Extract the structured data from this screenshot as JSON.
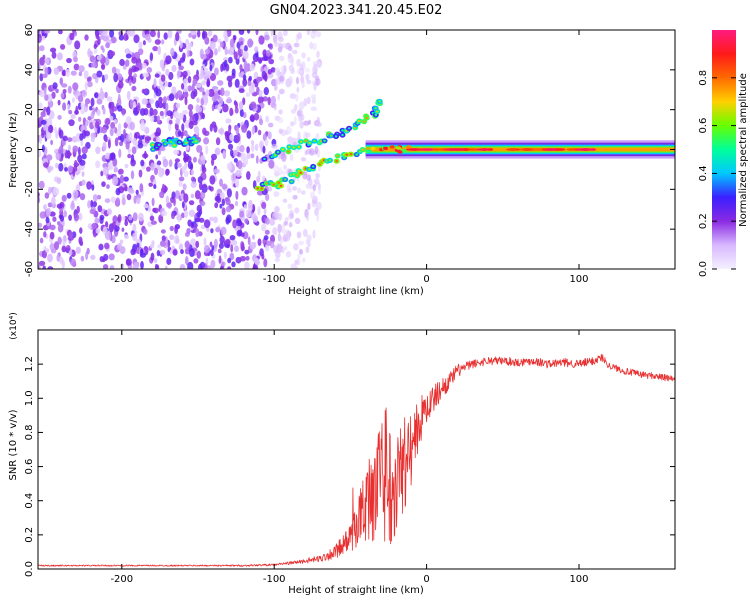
{
  "chart_data": [
    {
      "type": "heatmap",
      "title": "GN04.2023.341.20.45.E02",
      "xlabel": "Height of straight line (km)",
      "ylabel": "Frequency (Hz)",
      "xlim": [
        -255,
        163
      ],
      "ylim": [
        -60,
        60
      ],
      "xticks": [
        -200,
        -100,
        0,
        100
      ],
      "yticks": [
        -60,
        -40,
        -20,
        0,
        20,
        40,
        60
      ],
      "xtick_labels": [
        "-200",
        "-100",
        "0",
        "100"
      ],
      "ytick_labels": [
        "-60",
        "-40",
        "-20",
        "0",
        "20",
        "40",
        "60"
      ],
      "colorbar": {
        "label": "Normalized spectral amplitude",
        "range": [
          0,
          1
        ],
        "ticks": [
          0.0,
          0.2,
          0.4,
          0.6,
          0.8
        ],
        "tick_labels": [
          "0.0",
          "0.2",
          "0.4",
          "0.6",
          "0.8"
        ],
        "colors": [
          "#f4f0ff",
          "#d8b8ff",
          "#8a2be2",
          "#3b1fff",
          "#00c8ff",
          "#00ff9a",
          "#66ff00",
          "#ffd000",
          "#ff6a00",
          "#ff1a1a",
          "#ff1a80"
        ]
      },
      "features": [
        {
          "name": "noise-field",
          "x_range": [
            -255,
            -100
          ],
          "freq_range": [
            -60,
            60
          ],
          "amplitude": 0.25
        },
        {
          "name": "faint-noise",
          "x_range": [
            -100,
            -70
          ],
          "freq_range": [
            -60,
            60
          ],
          "amplitude": 0.1
        },
        {
          "name": "arc-lower",
          "points": [
            [
              -110,
              -19
            ],
            [
              -95,
              -17
            ],
            [
              -80,
              -10
            ],
            [
              -60,
              -5
            ],
            [
              -40,
              0
            ]
          ],
          "amplitude": 0.5
        },
        {
          "name": "arc-upper",
          "points": [
            [
              -105,
              -4
            ],
            [
              -85,
              2
            ],
            [
              -65,
              6
            ],
            [
              -50,
              10
            ],
            [
              -35,
              18
            ],
            [
              -30,
              26
            ]
          ],
          "amplitude": 0.45
        },
        {
          "name": "blob-left",
          "points": [
            [
              -180,
              1
            ],
            [
              -170,
              4
            ],
            [
              -160,
              3
            ],
            [
              -150,
              5
            ]
          ],
          "amplitude": 0.4
        },
        {
          "name": "band",
          "x_range": [
            -40,
            163
          ],
          "freq": 0,
          "amplitude": 0.9
        }
      ]
    },
    {
      "type": "line",
      "title": "",
      "xlabel": "Height of straight line (km)",
      "ylabel": "SNR (10 * v/v)",
      "multiplier": "(x10⁴)",
      "xlim": [
        -255,
        163
      ],
      "ylim": [
        0,
        1.4
      ],
      "xticks": [
        -200,
        -100,
        0,
        100
      ],
      "yticks": [
        0.0,
        0.2,
        0.4,
        0.6,
        0.8,
        1.0,
        1.2
      ],
      "xtick_labels": [
        "-200",
        "-100",
        "0",
        "100"
      ],
      "ytick_labels": [
        "0.0",
        "0.2",
        "0.4",
        "0.6",
        "0.8",
        "1.0",
        "1.2"
      ],
      "series": [
        {
          "name": "SNR",
          "color": "#e83030",
          "x": [
            -255,
            -200,
            -150,
            -120,
            -100,
            -85,
            -70,
            -60,
            -50,
            -45,
            -40,
            -35,
            -30,
            -25,
            -20,
            -15,
            -10,
            -5,
            0,
            5,
            10,
            15,
            20,
            30,
            40,
            50,
            60,
            70,
            80,
            90,
            100,
            110,
            115,
            120,
            130,
            140,
            150,
            163
          ],
          "values": [
            0.02,
            0.02,
            0.02,
            0.02,
            0.025,
            0.04,
            0.06,
            0.1,
            0.18,
            0.28,
            0.38,
            0.45,
            0.5,
            0.5,
            0.55,
            0.62,
            0.7,
            0.85,
            0.95,
            1.0,
            1.06,
            1.1,
            1.16,
            1.2,
            1.22,
            1.22,
            1.21,
            1.22,
            1.2,
            1.21,
            1.2,
            1.22,
            1.24,
            1.19,
            1.16,
            1.14,
            1.13,
            1.11
          ],
          "noise": [
            0.004,
            0.004,
            0.004,
            0.005,
            0.006,
            0.01,
            0.02,
            0.04,
            0.08,
            0.15,
            0.22,
            0.3,
            0.35,
            0.38,
            0.35,
            0.3,
            0.25,
            0.15,
            0.1,
            0.08,
            0.06,
            0.05,
            0.04,
            0.025,
            0.025,
            0.025,
            0.025,
            0.025,
            0.025,
            0.025,
            0.025,
            0.025,
            0.025,
            0.02,
            0.02,
            0.02,
            0.02,
            0.02
          ]
        }
      ]
    }
  ]
}
